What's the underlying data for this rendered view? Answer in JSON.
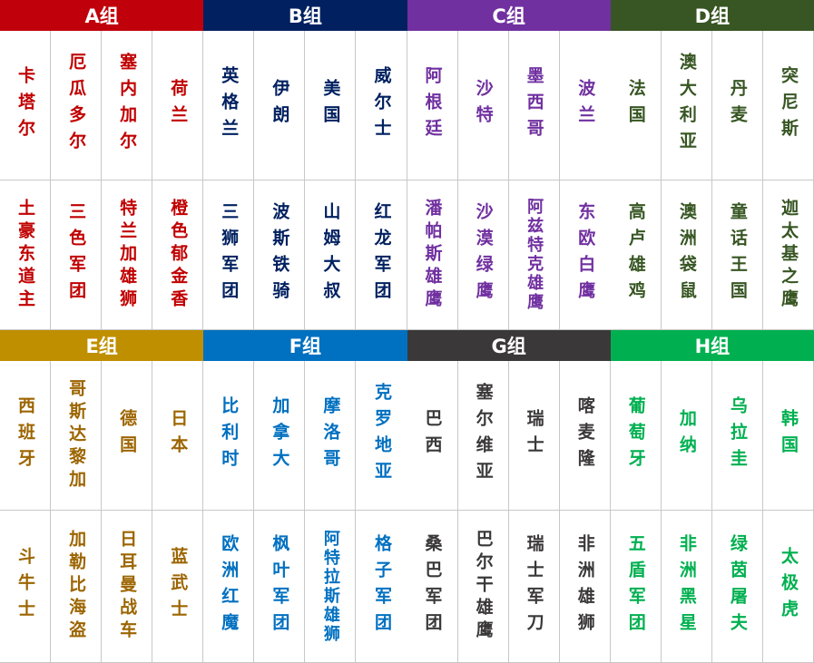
{
  "groups": [
    {
      "name": "A组",
      "color": "#c0000b",
      "text": "#c00000",
      "countries": [
        "卡塔尔",
        "厄瓜多尔",
        "塞内加尔",
        "荷兰"
      ],
      "nicknames": [
        "土豪东道主",
        "三色军团",
        "特兰加雄狮",
        "橙色郁金香"
      ]
    },
    {
      "name": "B组",
      "color": "#002060",
      "text": "#002060",
      "countries": [
        "英格兰",
        "伊朗",
        "美国",
        "威尔士"
      ],
      "nicknames": [
        "三狮军团",
        "波斯铁骑",
        "山姆大叔",
        "红龙军团"
      ]
    },
    {
      "name": "C组",
      "color": "#7030a0",
      "text": "#7030a0",
      "countries": [
        "阿根廷",
        "沙特",
        "墨西哥",
        "波兰"
      ],
      "nicknames": [
        "潘帕斯雄鹰",
        "沙漠绿鹰",
        "阿兹特克雄鹰",
        "东欧白鹰"
      ]
    },
    {
      "name": "D组",
      "color": "#375623",
      "text": "#375623",
      "countries": [
        "法国",
        "澳大利亚",
        "丹麦",
        "突尼斯"
      ],
      "nicknames": [
        "高卢雄鸡",
        "澳洲袋鼠",
        "童话王国",
        "迦太基之鹰"
      ]
    },
    {
      "name": "E组",
      "color": "#bf8f00",
      "text": "#9c6500",
      "countries": [
        "西班牙",
        "哥斯达黎加",
        "德国",
        "日本"
      ],
      "nicknames": [
        "斗牛士",
        "加勒比海盗",
        "日耳曼战车",
        "蓝武士"
      ]
    },
    {
      "name": "F组",
      "color": "#0070c0",
      "text": "#0070c0",
      "countries": [
        "比利时",
        "加拿大",
        "摩洛哥",
        "克罗地亚"
      ],
      "nicknames": [
        "欧洲红魔",
        "枫叶军团",
        "阿特拉斯雄狮",
        "格子军团"
      ]
    },
    {
      "name": "G组",
      "color": "#3a3838",
      "text": "#3a3838",
      "countries": [
        "巴西",
        "塞尔维亚",
        "瑞士",
        "喀麦隆"
      ],
      "nicknames": [
        "桑巴军团",
        "巴尔干雄鹰",
        "瑞士军刀",
        "非洲雄狮"
      ]
    },
    {
      "name": "H组",
      "color": "#00b050",
      "text": "#00b050",
      "countries": [
        "葡萄牙",
        "加纳",
        "乌拉圭",
        "韩国"
      ],
      "nicknames": [
        "五盾军团",
        "非洲黑星",
        "绿茵屠夫",
        "太极虎"
      ]
    }
  ]
}
